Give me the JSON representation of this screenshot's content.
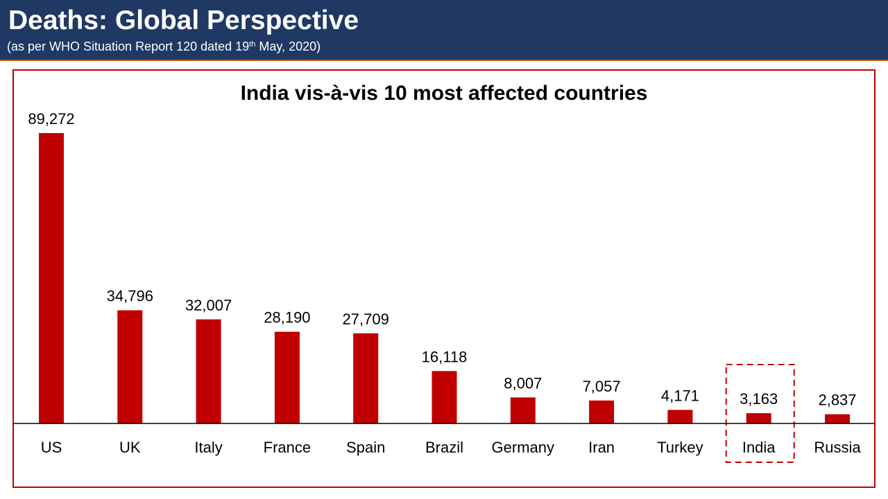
{
  "header": {
    "title": "Deaths: Global Perspective",
    "subtitle_pre": "(as per WHO Situation Report 120 dated 19",
    "subtitle_sup": "th",
    "subtitle_post": " May, 2020)"
  },
  "colors": {
    "header_bg": "#1f3864",
    "bar": "#c00000",
    "frame": "#c00000",
    "highlight": "#c00000"
  },
  "chart_data": {
    "type": "bar",
    "title": "India vis-à-vis 10 most affected countries",
    "categories": [
      "US",
      "UK",
      "Italy",
      "France",
      "Spain",
      "Brazil",
      "Germany",
      "Iran",
      "Turkey",
      "India",
      "Russia"
    ],
    "values": [
      89272,
      34796,
      32007,
      28190,
      27709,
      16118,
      8007,
      7057,
      4171,
      3163,
      2837
    ],
    "value_labels": [
      "89,272",
      "34,796",
      "32,007",
      "28,190",
      "27,709",
      "16,118",
      "8,007",
      "7,057",
      "4,171",
      "3,163",
      "2,837"
    ],
    "highlight_category": "India",
    "xlabel": "",
    "ylabel": "",
    "ylim": [
      0,
      89272
    ],
    "grid": false,
    "legend": "none"
  }
}
